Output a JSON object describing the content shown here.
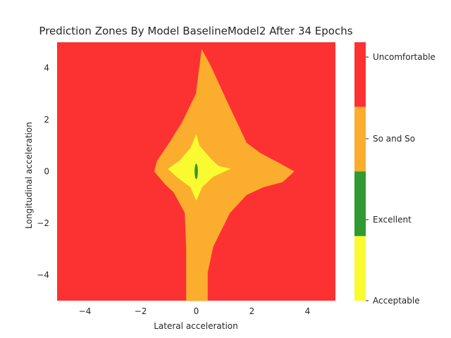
{
  "chart_data": {
    "type": "contourf",
    "title": "Prediction Zones By Model BaselineModel2 After 34 Epochs",
    "xlabel": "Lateral acceleration",
    "ylabel": "Longitudinal acceleration",
    "xlim": [
      -5,
      5
    ],
    "ylim": [
      -5,
      5
    ],
    "xticks": [
      -4,
      -2,
      0,
      2,
      4
    ],
    "yticks": [
      -4,
      -2,
      0,
      2,
      4
    ],
    "xtick_labels": [
      "−4",
      "−2",
      "0",
      "2",
      "4"
    ],
    "ytick_labels": [
      "−4",
      "−2",
      "0",
      "2",
      "4"
    ],
    "grid": false,
    "colorbar": {
      "labels": [
        "Acceptable",
        "Excellent",
        "So and So",
        "Uncomfortable"
      ],
      "levels": [
        0,
        0.6,
        1.2,
        1.8,
        2.4
      ]
    },
    "classes": [
      {
        "name": "Uncomfortable",
        "color": "#fc3232",
        "region": "background"
      },
      {
        "name": "So and So",
        "color": "#fbad2e",
        "polygon": [
          [
            0.2,
            4.7
          ],
          [
            0.5,
            4.1
          ],
          [
            1.1,
            2.7
          ],
          [
            1.8,
            1.1
          ],
          [
            2.3,
            0.7
          ],
          [
            3.0,
            0.3
          ],
          [
            3.5,
            0.0
          ],
          [
            3.1,
            -0.4
          ],
          [
            2.4,
            -0.6
          ],
          [
            1.8,
            -0.9
          ],
          [
            1.2,
            -1.6
          ],
          [
            0.6,
            -2.9
          ],
          [
            0.4,
            -3.9
          ],
          [
            0.4,
            -5.0
          ],
          [
            -0.35,
            -5.0
          ],
          [
            -0.35,
            -3.0
          ],
          [
            -0.4,
            -1.6
          ],
          [
            -0.8,
            -0.8
          ],
          [
            -1.1,
            -0.5
          ],
          [
            -1.5,
            0.0
          ],
          [
            -1.4,
            0.4
          ],
          [
            -0.9,
            1.2
          ],
          [
            -0.5,
            1.9
          ],
          [
            0.0,
            3.0
          ]
        ]
      },
      {
        "name": "Acceptable",
        "color": "#fafa30",
        "polygon": [
          [
            0.0,
            1.4
          ],
          [
            0.1,
            1.0
          ],
          [
            0.5,
            0.5
          ],
          [
            0.8,
            0.2
          ],
          [
            1.2,
            0.1
          ],
          [
            0.6,
            -0.2
          ],
          [
            0.2,
            -0.6
          ],
          [
            0.0,
            -1.1
          ],
          [
            -0.2,
            -0.6
          ],
          [
            -0.7,
            -0.2
          ],
          [
            -1.0,
            0.1
          ],
          [
            -0.6,
            0.4
          ],
          [
            -0.2,
            0.9
          ]
        ]
      },
      {
        "name": "Excellent",
        "color": "#2f9a2f",
        "ellipse": {
          "cx": 0.0,
          "cy": 0.0,
          "rx": 0.06,
          "ry": 0.3
        }
      }
    ]
  }
}
